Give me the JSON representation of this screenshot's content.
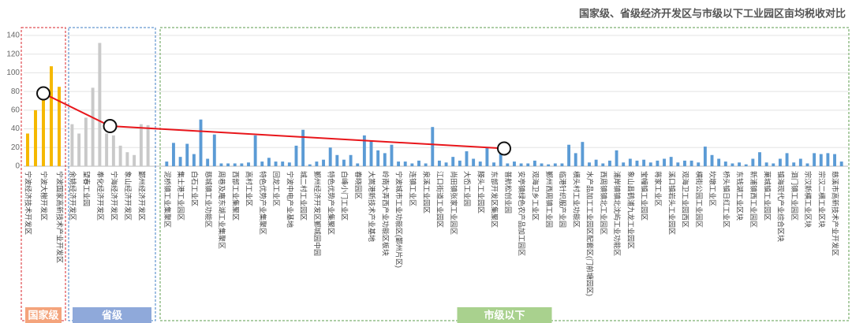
{
  "chart_data": {
    "type": "bar",
    "title": "国家级、省级经济开发区与市级以下工业园区亩均税收对比",
    "ylim": [
      0,
      140
    ],
    "yticks": [
      0,
      20,
      40,
      60,
      80,
      100,
      120,
      140
    ],
    "grid": true,
    "average_color": "#e8161b",
    "groups": [
      {
        "name": "国家级",
        "color": "#f5b800",
        "frame_color": "#d9262b",
        "label_color": "#f4a47c",
        "categories": [
          "宁波经济技术开发区",
          null,
          "宁波大榭开发区",
          null,
          "宁波国家高新技术产业开发区"
        ],
        "values": [
          35,
          60,
          78,
          107,
          85
        ],
        "average": 78
      },
      {
        "name": "省级",
        "color": "#c9c9c9",
        "frame_color": "#3f7fc4",
        "label_color": "#8fa9da",
        "categories": [
          "余姚经济开发区",
          null,
          "望春工业园",
          null,
          "奉化经济开发区",
          null,
          "宁海经济开发区",
          null,
          "象山经济开发区",
          null,
          "鄞州经济开发区",
          null
        ],
        "values": [
          45,
          35,
          52,
          84,
          132,
          35,
          33,
          22,
          15,
          12,
          45,
          44
        ],
        "average": 43
      },
      {
        "name": "市级以下",
        "color": "#5b9bd5",
        "frame_color": "#5e9e4e",
        "label_color": "#a9d18e",
        "categories": [
          "泥桥镇工业集聚区",
          null,
          "集士港工业园区",
          null,
          "白石工业区",
          null,
          "慈城镇工业功能区",
          null,
          "周巷及庵东湖工业集聚区",
          null,
          "西部工业集聚区",
          null,
          "高村工业区",
          null,
          "特色优势产业集聚区",
          null,
          "回龙工业区",
          null,
          "宁波中电产业基地",
          null,
          "城二村工业园区",
          null,
          "鄞州经济开发区鄞城园中园",
          null,
          "特色优势产业集聚区",
          null,
          "白峰小门工业区",
          null,
          "春晓园区",
          null,
          "大嵩港新技术产业基地",
          null,
          "岭南大弄西产业功能区板块",
          null,
          "宁波城市工业功能区(鄞州片区)",
          null,
          "连镇工业区",
          null,
          "泉溪工业园区",
          null,
          "江口街道工业园区",
          null,
          "尚田镇张家工业园区",
          null,
          "大岙工业园",
          null,
          "滕头工业园区",
          null,
          "东部开发区集聚区",
          null,
          "普航松创业园",
          null,
          "安亭镇绿色农产品加工园区",
          null,
          "观海卫乡工业区",
          null,
          "鄞州西周镇工业园",
          null,
          "临港针织服产业园",
          null,
          "横头村工业功能区",
          null,
          "水产品加工工业园区配套区(门前塘园区)",
          null,
          "西周镇镇北工业园区",
          null,
          "浦岸镇镇北沈屿工业功能区",
          null,
          "象山县鹤浦九龙工业园区",
          null,
          "宝幢镇工业园区",
          null,
          "蒋家工业区",
          null,
          "溪口镇岩头工业园区",
          null,
          "观海卫工业园西区",
          null,
          "横街公园工业园区",
          null,
          "坎墩工业区",
          null,
          "桥头镇日红工业区",
          null,
          "东钱湖工业区块",
          null,
          "新浦镇西工业园区",
          null,
          "菓城镇工业园区",
          null,
          "镇海现代产业综合区块",
          null,
          "泗门镇工业园区",
          null,
          "宗汉新横工业区块",
          null,
          "宗汉二横工业区块",
          null,
          "慈溪市高新技术产业开发区",
          null
        ],
        "values": [
          5,
          25,
          10,
          24,
          13,
          50,
          8,
          34,
          3,
          3,
          3,
          3,
          4,
          33,
          5,
          9,
          5,
          5,
          4,
          22,
          39,
          2,
          5,
          7,
          20,
          12,
          7,
          12,
          3,
          33,
          27,
          17,
          14,
          23,
          5,
          5,
          3,
          6,
          3,
          42,
          6,
          4,
          10,
          6,
          16,
          8,
          5,
          20,
          4,
          24,
          3,
          5,
          3,
          3,
          6,
          3,
          2,
          3,
          3,
          23,
          14,
          26,
          4,
          7,
          3,
          6,
          17,
          4,
          8,
          6,
          7,
          4,
          6,
          8,
          10,
          4,
          6,
          6,
          4,
          21,
          12,
          8,
          5,
          3,
          4,
          2,
          8,
          15,
          4,
          3,
          8,
          14,
          4,
          8,
          3,
          14,
          13,
          14,
          13,
          5
        ],
        "average": 19
      }
    ]
  }
}
